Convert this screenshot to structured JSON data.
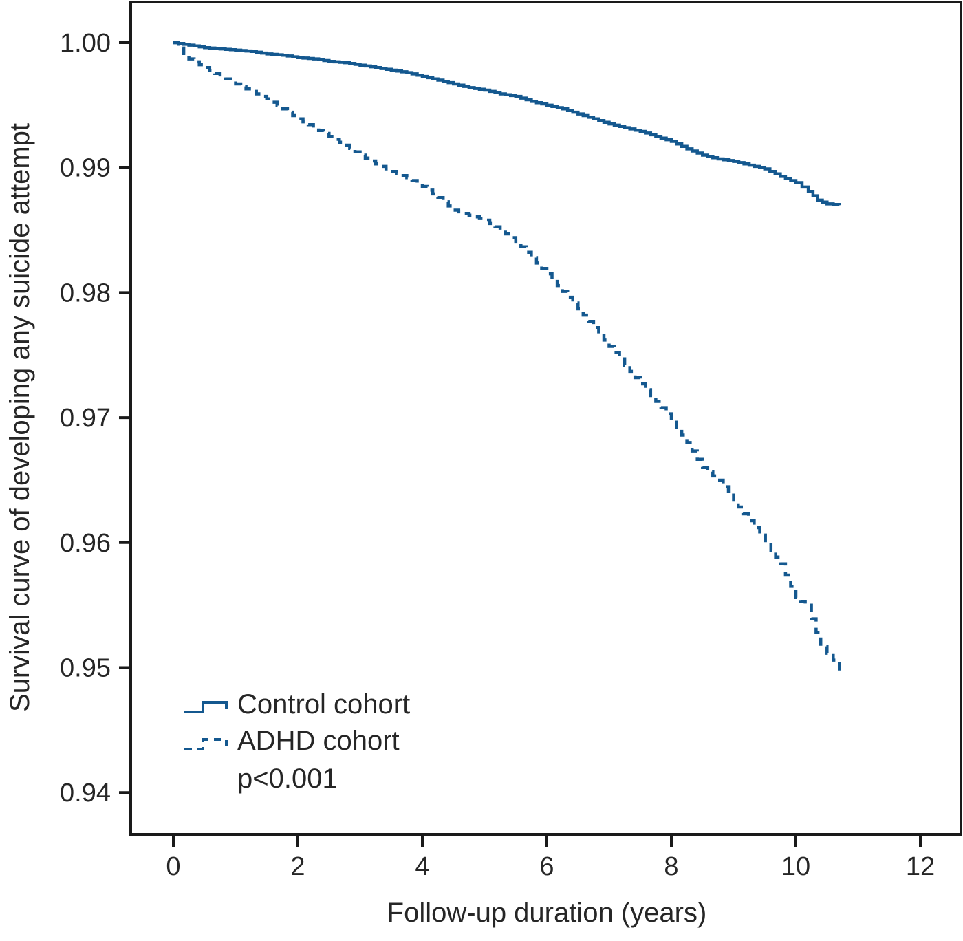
{
  "figure": {
    "background": "#ffffff",
    "colors": {
      "curve": "#14588f",
      "axis": "#1a1a1a",
      "text": "#262626"
    }
  },
  "chart_data": {
    "type": "line",
    "subtype": "kaplan-meier-survival-step",
    "title": "",
    "xlabel": "Follow-up duration (years)",
    "ylabel": "Survival curve of developing any suicide attempt",
    "xlim": [
      0,
      12
    ],
    "ylim": [
      0.94,
      1.0
    ],
    "grid": false,
    "legend_position": "inside-bottom-left",
    "annotation": "p<0.001",
    "x_ticks": [
      0,
      2,
      4,
      6,
      8,
      10,
      12
    ],
    "x_tick_labels": [
      "0",
      "2",
      "4",
      "6",
      "8",
      "10",
      "12"
    ],
    "y_ticks": [
      1.0,
      0.99,
      0.98,
      0.97,
      0.96,
      0.95,
      0.94
    ],
    "y_tick_labels": [
      "1.00",
      "0.99",
      "0.98",
      "0.97",
      "0.96",
      "0.95",
      "0.94"
    ],
    "series": [
      {
        "name": "Control cohort",
        "style": "solid",
        "points": [
          [
            0,
            1.0
          ],
          [
            0.25,
            0.9998
          ],
          [
            0.5,
            0.9996
          ],
          [
            0.75,
            0.9995
          ],
          [
            1.0,
            0.9994
          ],
          [
            1.25,
            0.9993
          ],
          [
            1.5,
            0.9991
          ],
          [
            1.75,
            0.999
          ],
          [
            2.0,
            0.9988
          ],
          [
            2.25,
            0.9987
          ],
          [
            2.5,
            0.9985
          ],
          [
            2.75,
            0.9984
          ],
          [
            3.0,
            0.9982
          ],
          [
            3.25,
            0.998
          ],
          [
            3.5,
            0.9978
          ],
          [
            3.75,
            0.9976
          ],
          [
            4.0,
            0.9973
          ],
          [
            4.25,
            0.997
          ],
          [
            4.5,
            0.9967
          ],
          [
            4.75,
            0.9964
          ],
          [
            5.0,
            0.9962
          ],
          [
            5.25,
            0.9959
          ],
          [
            5.5,
            0.9957
          ],
          [
            5.75,
            0.9953
          ],
          [
            6.0,
            0.995
          ],
          [
            6.25,
            0.9947
          ],
          [
            6.5,
            0.9943
          ],
          [
            6.75,
            0.9939
          ],
          [
            7.0,
            0.9935
          ],
          [
            7.25,
            0.9932
          ],
          [
            7.5,
            0.9929
          ],
          [
            7.75,
            0.9925
          ],
          [
            8.0,
            0.9921
          ],
          [
            8.25,
            0.9915
          ],
          [
            8.5,
            0.991
          ],
          [
            8.75,
            0.9907
          ],
          [
            9.0,
            0.9905
          ],
          [
            9.25,
            0.9902
          ],
          [
            9.5,
            0.9899
          ],
          [
            9.75,
            0.9893
          ],
          [
            10.0,
            0.9888
          ],
          [
            10.2,
            0.9881
          ],
          [
            10.35,
            0.9874
          ],
          [
            10.5,
            0.9871
          ],
          [
            10.7,
            0.987
          ]
        ]
      },
      {
        "name": "ADHD cohort",
        "style": "dashed",
        "points": [
          [
            0,
            1.0
          ],
          [
            0.25,
            0.9987
          ],
          [
            0.5,
            0.998
          ],
          [
            0.75,
            0.9973
          ],
          [
            1.0,
            0.9967
          ],
          [
            1.25,
            0.9961
          ],
          [
            1.5,
            0.9955
          ],
          [
            1.75,
            0.9947
          ],
          [
            2.0,
            0.9939
          ],
          [
            2.25,
            0.9932
          ],
          [
            2.5,
            0.9925
          ],
          [
            2.75,
            0.9918
          ],
          [
            3.0,
            0.991
          ],
          [
            3.25,
            0.9903
          ],
          [
            3.5,
            0.9897
          ],
          [
            3.75,
            0.9892
          ],
          [
            4.0,
            0.9885
          ],
          [
            4.25,
            0.9876
          ],
          [
            4.5,
            0.9866
          ],
          [
            4.75,
            0.9862
          ],
          [
            5.0,
            0.9858
          ],
          [
            5.25,
            0.985
          ],
          [
            5.5,
            0.9841
          ],
          [
            5.75,
            0.9828
          ],
          [
            6.0,
            0.9815
          ],
          [
            6.25,
            0.9801
          ],
          [
            6.5,
            0.9787
          ],
          [
            6.75,
            0.9772
          ],
          [
            7.0,
            0.9757
          ],
          [
            7.25,
            0.9742
          ],
          [
            7.5,
            0.9727
          ],
          [
            7.75,
            0.9713
          ],
          [
            8.0,
            0.9698
          ],
          [
            8.25,
            0.968
          ],
          [
            8.5,
            0.966
          ],
          [
            8.75,
            0.965
          ],
          [
            9.0,
            0.9634
          ],
          [
            9.15,
            0.9623
          ],
          [
            9.33,
            0.9612
          ],
          [
            9.6,
            0.9594
          ],
          [
            9.75,
            0.9583
          ],
          [
            10.0,
            0.9556
          ],
          [
            10.15,
            0.955
          ],
          [
            10.25,
            0.9539
          ],
          [
            10.4,
            0.9517
          ],
          [
            10.6,
            0.9506
          ],
          [
            10.7,
            0.9495
          ]
        ]
      }
    ]
  }
}
